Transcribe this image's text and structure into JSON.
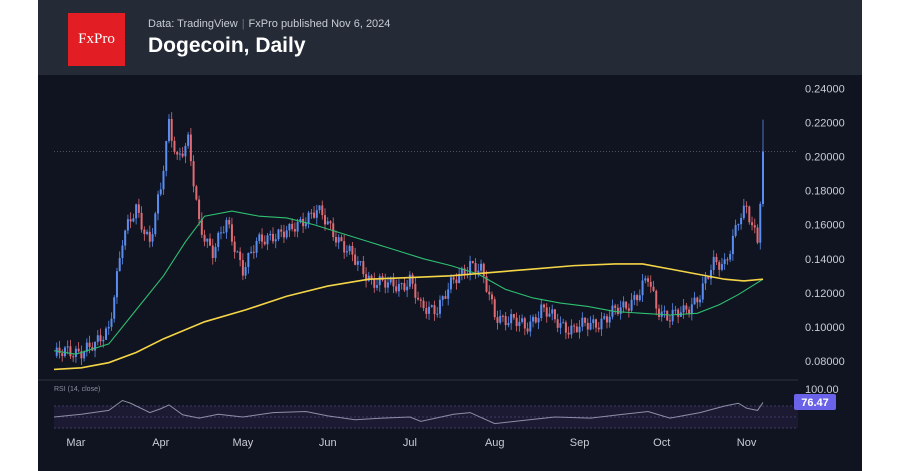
{
  "header": {
    "logo_text": "FxPro",
    "source_label": "Data: TradingView",
    "published_label": "FxPro published Nov 6, 2024",
    "title": "Dogecoin, Daily"
  },
  "rsi": {
    "label": "RSI (14, close)",
    "value_label": "76.47",
    "value": 76.47,
    "top_tick": "100.00"
  },
  "colors": {
    "up": "#5b8def",
    "down": "#e06b73",
    "ma_fast": "#2fbf71",
    "ma_slow": "#f5d547",
    "rsi_line": "#8e8ea8",
    "rsi_badge": "#6a62e8"
  },
  "chart_data": {
    "type": "line",
    "title": "Dogecoin, Daily",
    "xlabel": "",
    "ylabel": "",
    "ylim": [
      0.07,
      0.245
    ],
    "y_ticks": [
      "0.24000",
      "0.22000",
      "0.20000",
      "0.18000",
      "0.16000",
      "0.14000",
      "0.12000",
      "0.10000",
      "0.08000"
    ],
    "x_ticks": [
      "Mar",
      "Apr",
      "May",
      "Jun",
      "Jul",
      "Aug",
      "Sep",
      "Oct",
      "Nov"
    ],
    "last_price": 0.203,
    "x_ticks_day_index": [
      8,
      39,
      69,
      100,
      130,
      161,
      192,
      222,
      253
    ],
    "series": [
      {
        "key": "price",
        "points": [
          [
            0,
            0.083
          ],
          [
            8,
            0.086
          ],
          [
            15,
            0.088
          ],
          [
            20,
            0.1
          ],
          [
            25,
            0.15
          ],
          [
            30,
            0.17
          ],
          [
            35,
            0.15
          ],
          [
            39,
            0.18
          ],
          [
            42,
            0.22
          ],
          [
            45,
            0.2
          ],
          [
            49,
            0.208
          ],
          [
            53,
            0.16
          ],
          [
            58,
            0.145
          ],
          [
            63,
            0.16
          ],
          [
            69,
            0.135
          ],
          [
            74,
            0.148
          ],
          [
            80,
            0.155
          ],
          [
            86,
            0.155
          ],
          [
            92,
            0.165
          ],
          [
            96,
            0.168
          ],
          [
            100,
            0.16
          ],
          [
            105,
            0.15
          ],
          [
            110,
            0.138
          ],
          [
            116,
            0.128
          ],
          [
            122,
            0.124
          ],
          [
            127,
            0.125
          ],
          [
            130,
            0.128
          ],
          [
            134,
            0.11
          ],
          [
            140,
            0.112
          ],
          [
            146,
            0.126
          ],
          [
            152,
            0.138
          ],
          [
            156,
            0.132
          ],
          [
            161,
            0.108
          ],
          [
            166,
            0.104
          ],
          [
            172,
            0.1
          ],
          [
            178,
            0.11
          ],
          [
            183,
            0.104
          ],
          [
            190,
            0.098
          ],
          [
            196,
            0.102
          ],
          [
            202,
            0.105
          ],
          [
            208,
            0.112
          ],
          [
            214,
            0.12
          ],
          [
            217,
            0.128
          ],
          [
            220,
            0.112
          ],
          [
            225,
            0.106
          ],
          [
            230,
            0.108
          ],
          [
            236,
            0.12
          ],
          [
            241,
            0.136
          ],
          [
            245,
            0.138
          ],
          [
            250,
            0.162
          ],
          [
            253,
            0.168
          ],
          [
            257,
            0.152
          ],
          [
            259,
            0.203
          ]
        ]
      },
      {
        "key": "ma_fast",
        "points": [
          [
            0,
            0.086
          ],
          [
            8,
            0.084
          ],
          [
            20,
            0.09
          ],
          [
            30,
            0.11
          ],
          [
            40,
            0.13
          ],
          [
            48,
            0.15
          ],
          [
            55,
            0.165
          ],
          [
            65,
            0.168
          ],
          [
            75,
            0.165
          ],
          [
            85,
            0.164
          ],
          [
            95,
            0.16
          ],
          [
            105,
            0.155
          ],
          [
            115,
            0.15
          ],
          [
            125,
            0.145
          ],
          [
            135,
            0.14
          ],
          [
            145,
            0.136
          ],
          [
            155,
            0.131
          ],
          [
            165,
            0.122
          ],
          [
            175,
            0.117
          ],
          [
            185,
            0.114
          ],
          [
            195,
            0.112
          ],
          [
            205,
            0.109
          ],
          [
            215,
            0.108
          ],
          [
            225,
            0.107
          ],
          [
            235,
            0.108
          ],
          [
            243,
            0.113
          ],
          [
            250,
            0.119
          ],
          [
            259,
            0.128
          ]
        ]
      },
      {
        "key": "ma_slow",
        "points": [
          [
            0,
            0.075
          ],
          [
            10,
            0.076
          ],
          [
            20,
            0.079
          ],
          [
            30,
            0.085
          ],
          [
            40,
            0.093
          ],
          [
            55,
            0.103
          ],
          [
            70,
            0.11
          ],
          [
            85,
            0.118
          ],
          [
            100,
            0.124
          ],
          [
            115,
            0.128
          ],
          [
            130,
            0.129
          ],
          [
            145,
            0.13
          ],
          [
            160,
            0.132
          ],
          [
            175,
            0.134
          ],
          [
            190,
            0.136
          ],
          [
            205,
            0.137
          ],
          [
            215,
            0.137
          ],
          [
            225,
            0.134
          ],
          [
            235,
            0.131
          ],
          [
            245,
            0.128
          ],
          [
            252,
            0.127
          ],
          [
            259,
            0.128
          ]
        ]
      },
      {
        "key": "rsi",
        "points": [
          [
            0,
            50
          ],
          [
            10,
            55
          ],
          [
            20,
            62
          ],
          [
            25,
            80
          ],
          [
            28,
            75
          ],
          [
            35,
            58
          ],
          [
            39,
            65
          ],
          [
            42,
            72
          ],
          [
            47,
            54
          ],
          [
            53,
            48
          ],
          [
            60,
            55
          ],
          [
            69,
            50
          ],
          [
            80,
            58
          ],
          [
            92,
            60
          ],
          [
            100,
            52
          ],
          [
            110,
            45
          ],
          [
            120,
            48
          ],
          [
            130,
            50
          ],
          [
            134,
            42
          ],
          [
            146,
            55
          ],
          [
            152,
            58
          ],
          [
            161,
            38
          ],
          [
            172,
            44
          ],
          [
            183,
            50
          ],
          [
            196,
            48
          ],
          [
            208,
            55
          ],
          [
            217,
            60
          ],
          [
            225,
            48
          ],
          [
            236,
            58
          ],
          [
            245,
            70
          ],
          [
            250,
            75
          ],
          [
            253,
            66
          ],
          [
            257,
            62
          ],
          [
            259,
            76.47
          ]
        ]
      }
    ]
  }
}
